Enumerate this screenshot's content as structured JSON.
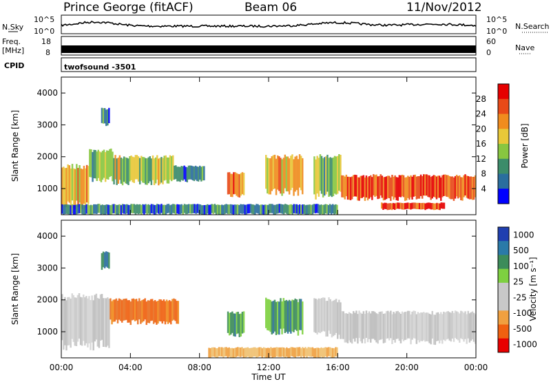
{
  "header": {
    "station": "Prince George (fitACF)",
    "beam": "Beam 06",
    "date": "11/Nov/2012"
  },
  "sky_panel": {
    "left_label": "N.Sky",
    "right_label": "N.Search",
    "left_ticks": [
      "10^5",
      "10^0"
    ],
    "right_ticks": [
      "10^5",
      "10^0"
    ]
  },
  "freq_panel": {
    "left_label_top": "Freq.",
    "left_label_unit": "[MHz]",
    "left_ticks": [
      "18",
      "8"
    ],
    "right_label": "Nave",
    "right_ticks": [
      "60",
      "0"
    ]
  },
  "cpid": {
    "label": "CPID",
    "value": "twofsound -3501"
  },
  "chart_data": [
    {
      "type": "heatmap",
      "name": "power",
      "ylabel": "Slant Range [km]",
      "yticks": [
        "1000",
        "2000",
        "3000",
        "4000"
      ],
      "ylim": [
        180,
        4500
      ],
      "colorbar_label": "Power [dB]",
      "colorbar_ticks": [
        "4",
        "8",
        "12",
        "16",
        "20",
        "24",
        "28"
      ],
      "colorbar_range": [
        0,
        30
      ],
      "colors": [
        "#0000ff",
        "#2a6e9e",
        "#3c8c6a",
        "#88c640",
        "#e8c838",
        "#f08c1e",
        "#e84a18",
        "#e60000"
      ],
      "regions": [
        {
          "x0": 0.0,
          "x1": 1.6,
          "y0": 500,
          "y1": 1700,
          "v": 18
        },
        {
          "x0": 1.6,
          "x1": 3.0,
          "y0": 1300,
          "y1": 2200,
          "v": 10
        },
        {
          "x0": 3.0,
          "x1": 6.5,
          "y0": 1200,
          "y1": 2000,
          "v": 14
        },
        {
          "x0": 6.5,
          "x1": 8.3,
          "y0": 1250,
          "y1": 1700,
          "v": 6
        },
        {
          "x0": 9.6,
          "x1": 10.6,
          "y0": 800,
          "y1": 1500,
          "v": 24
        },
        {
          "x0": 11.8,
          "x1": 14.0,
          "y0": 900,
          "y1": 2000,
          "v": 18
        },
        {
          "x0": 14.6,
          "x1": 16.2,
          "y0": 800,
          "y1": 2000,
          "v": 12
        },
        {
          "x0": 16.2,
          "x1": 24.0,
          "y0": 700,
          "y1": 1400,
          "v": 26
        },
        {
          "x0": 18.5,
          "x1": 22.2,
          "y0": 350,
          "y1": 550,
          "v": 28
        },
        {
          "x0": 0.0,
          "x1": 16.0,
          "y0": 200,
          "y1": 500,
          "v": 6
        },
        {
          "x0": 2.3,
          "x1": 2.8,
          "y0": 3000,
          "y1": 3500,
          "v": 8
        }
      ],
      "xticks": [
        "00:00",
        "04:00",
        "08:00",
        "12:00",
        "16:00",
        "20:00",
        "00:00"
      ]
    },
    {
      "type": "heatmap",
      "name": "velocity",
      "ylabel": "Slant Range [km]",
      "xlabel": "Time UT",
      "yticks": [
        "1000",
        "2000",
        "3000",
        "4000"
      ],
      "ylim": [
        180,
        4500
      ],
      "colorbar_label": "Velocity [m s⁻¹]",
      "colorbar_ticks": [
        "1000",
        "500",
        "100",
        "25",
        "-25",
        "-100",
        "-500",
        "-1000"
      ],
      "colors": [
        "#1f3fb0",
        "#2a7aa8",
        "#3c8c5a",
        "#7ed040",
        "#c8c8c8",
        "#c8c8c8",
        "#f0a040",
        "#f06010",
        "#e80000"
      ],
      "regions": [
        {
          "x0": 0.0,
          "x1": 2.8,
          "y0": 600,
          "y1": 2100,
          "v": "gray"
        },
        {
          "x0": 2.8,
          "x1": 6.8,
          "y0": 1300,
          "y1": 2000,
          "v": "orange"
        },
        {
          "x0": 9.6,
          "x1": 10.6,
          "y0": 900,
          "y1": 1600,
          "v": "green"
        },
        {
          "x0": 11.8,
          "x1": 14.0,
          "y0": 1000,
          "y1": 2000,
          "v": "green"
        },
        {
          "x0": 14.6,
          "x1": 16.2,
          "y0": 900,
          "y1": 2000,
          "v": "gray"
        },
        {
          "x0": 16.2,
          "x1": 24.0,
          "y0": 700,
          "y1": 1600,
          "v": "gray"
        },
        {
          "x0": 8.5,
          "x1": 16.0,
          "y0": 200,
          "y1": 500,
          "v": "lightorange"
        },
        {
          "x0": 2.3,
          "x1": 2.8,
          "y0": 3000,
          "y1": 3500,
          "v": "green"
        }
      ],
      "xticks": [
        "00:00",
        "04:00",
        "08:00",
        "12:00",
        "16:00",
        "20:00",
        "00:00"
      ]
    }
  ]
}
